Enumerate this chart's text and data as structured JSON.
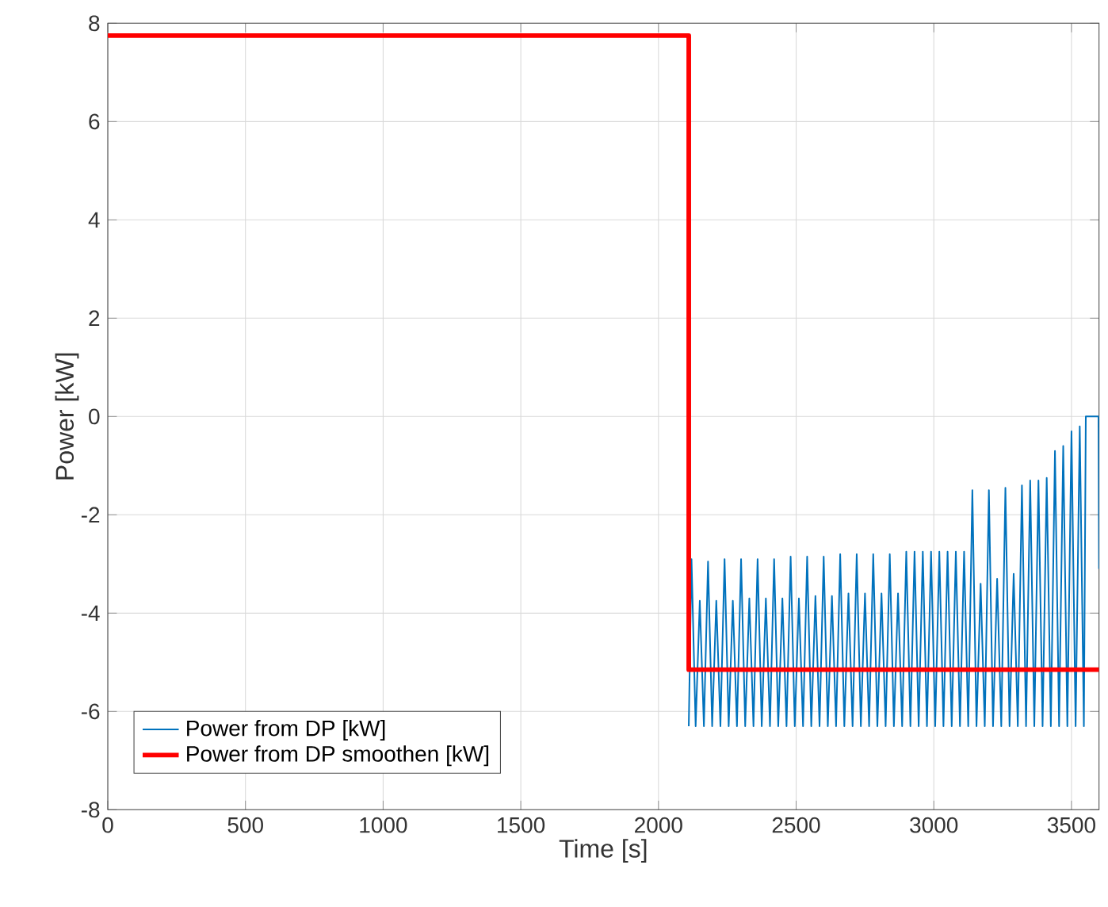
{
  "chart_data": {
    "type": "line",
    "xlabel": "Time [s]",
    "ylabel": "Power [kW]",
    "xlim": [
      0,
      3600
    ],
    "xticks": [
      0,
      500,
      1000,
      1500,
      2000,
      2500,
      3000,
      3500
    ],
    "ylim": [
      -8,
      8
    ],
    "yticks": [
      -8,
      -6,
      -4,
      -2,
      0,
      2,
      4,
      6,
      8
    ],
    "grid": true,
    "legend": "bottom left",
    "series": [
      {
        "name": "Power from DP [kW]",
        "color": "#0072bd",
        "x": [
          2110,
          2120,
          2135,
          2150,
          2165,
          2180,
          2195,
          2210,
          2225,
          2240,
          2255,
          2270,
          2285,
          2300,
          2315,
          2330,
          2345,
          2360,
          2375,
          2390,
          2405,
          2420,
          2435,
          2450,
          2465,
          2480,
          2495,
          2510,
          2525,
          2540,
          2555,
          2570,
          2585,
          2600,
          2615,
          2630,
          2645,
          2660,
          2675,
          2690,
          2705,
          2720,
          2735,
          2750,
          2765,
          2780,
          2795,
          2810,
          2825,
          2840,
          2855,
          2870,
          2885,
          2900,
          2915,
          2930,
          2945,
          2960,
          2975,
          2990,
          3005,
          3020,
          3035,
          3050,
          3065,
          3080,
          3095,
          3110,
          3125,
          3140,
          3155,
          3170,
          3185,
          3200,
          3215,
          3230,
          3245,
          3260,
          3275,
          3290,
          3305,
          3320,
          3335,
          3350,
          3365,
          3380,
          3395,
          3410,
          3425,
          3440,
          3455,
          3470,
          3485,
          3500,
          3515,
          3530,
          3545,
          3552,
          3598,
          3600
        ],
        "values": [
          -6.3,
          -2.9,
          -6.3,
          -3.75,
          -6.3,
          -2.95,
          -6.3,
          -3.75,
          -6.3,
          -2.9,
          -6.3,
          -3.75,
          -6.3,
          -2.9,
          -6.3,
          -3.7,
          -6.3,
          -2.9,
          -6.3,
          -3.7,
          -6.3,
          -2.9,
          -6.3,
          -3.7,
          -6.3,
          -2.85,
          -6.3,
          -3.7,
          -6.3,
          -2.85,
          -6.3,
          -3.65,
          -6.3,
          -2.85,
          -6.3,
          -3.65,
          -6.3,
          -2.8,
          -6.3,
          -3.6,
          -6.3,
          -2.8,
          -6.3,
          -3.6,
          -6.3,
          -2.8,
          -6.3,
          -3.6,
          -6.3,
          -2.8,
          -6.3,
          -3.6,
          -6.3,
          -2.75,
          -6.3,
          -2.75,
          -6.3,
          -2.75,
          -6.3,
          -2.75,
          -6.3,
          -2.75,
          -6.3,
          -2.75,
          -6.3,
          -2.75,
          -6.3,
          -2.75,
          -6.3,
          -1.5,
          -6.3,
          -3.4,
          -6.3,
          -1.5,
          -6.3,
          -3.3,
          -6.3,
          -1.45,
          -6.3,
          -3.2,
          -6.3,
          -1.4,
          -6.3,
          -1.3,
          -6.3,
          -1.3,
          -6.3,
          -1.25,
          -6.3,
          -0.7,
          -6.3,
          -0.6,
          -6.3,
          -0.3,
          -6.3,
          -0.2,
          -6.3,
          0,
          0,
          -3.1
        ]
      },
      {
        "name": "Power from DP smoothen [kW]",
        "color": "#ff0000",
        "x": [
          0,
          2110,
          2110,
          3600
        ],
        "values": [
          7.75,
          7.75,
          -5.15,
          -5.15
        ]
      }
    ]
  }
}
